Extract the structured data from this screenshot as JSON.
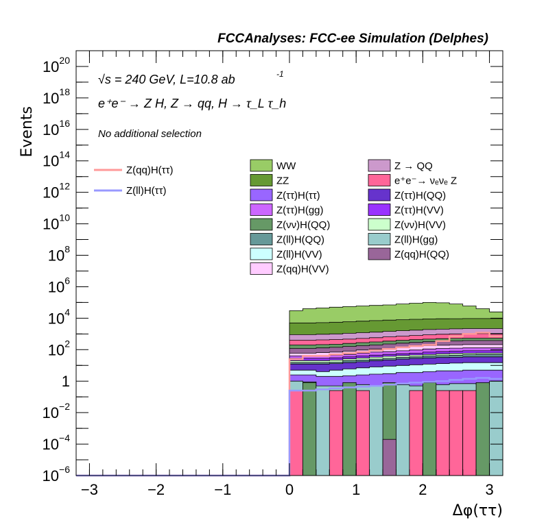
{
  "chart_data": {
    "type": "area",
    "title": "FCCAnalyses: FCC-ee Simulation (Delphes)",
    "xlabel": "Δφ(ττ)",
    "ylabel": "Events",
    "xlim": [
      -3.2,
      3.2
    ],
    "ylim": [
      1e-06,
      1e+21
    ],
    "log_y": true,
    "grid": false,
    "x_ticks": [
      "−3",
      "−2",
      "−1",
      "0",
      "1",
      "2",
      "3"
    ],
    "y_ticks": [
      {
        "base": "10",
        "exp": "−6",
        "value": 1e-06
      },
      {
        "base": "10",
        "exp": "−4",
        "value": 0.0001
      },
      {
        "base": "10",
        "exp": "−2",
        "value": 0.01
      },
      {
        "base": "1",
        "exp": "",
        "value": 1
      },
      {
        "base": "10",
        "exp": "2",
        "value": 100.0
      },
      {
        "base": "10",
        "exp": "4",
        "value": 10000.0
      },
      {
        "base": "10",
        "exp": "6",
        "value": 1000000.0
      },
      {
        "base": "10",
        "exp": "8",
        "value": 100000000.0
      },
      {
        "base": "10",
        "exp": "10",
        "value": 10000000000.0
      },
      {
        "base": "10",
        "exp": "12",
        "value": 1000000000000.0
      },
      {
        "base": "10",
        "exp": "14",
        "value": 100000000000000.0
      },
      {
        "base": "10",
        "exp": "16",
        "value": 1e+16
      },
      {
        "base": "10",
        "exp": "18",
        "value": 1e+18
      },
      {
        "base": "10",
        "exp": "20",
        "value": 1e+20
      }
    ],
    "annotations": {
      "energy": "√s = 240 GeV, L=10.8 ab",
      "energy_exp": "-1",
      "process": "e⁺e⁻ → Z H, Z → qq, H → τ_L τ_h",
      "selection": "No additional selection"
    },
    "bin_edges": [
      0,
      0.2,
      0.4,
      0.6,
      0.8,
      1.0,
      1.2,
      1.4,
      1.6,
      1.8,
      2.0,
      2.2,
      2.4,
      2.6,
      2.8,
      3.0,
      3.2
    ],
    "stack_totals": [
      {
        "name": "Z(ll)H(gg)",
        "color": "#99cccc",
        "values": [
          1.0,
          0.9,
          0.5,
          0.5,
          0.45,
          0.6,
          0.5,
          0.6,
          0.6,
          0.5,
          0.6,
          0.6,
          0.7,
          0.7,
          0.6,
          1.0
        ]
      },
      {
        "name": "Z(ττ)H(ττ)",
        "color": "#9966ff",
        "values": [
          2.5,
          2.5,
          2.0,
          2.0,
          2.2,
          2.5,
          2.8,
          3.0,
          3.5,
          3.5,
          4.0,
          4.5,
          4.5,
          5.0,
          5.0,
          5.0
        ]
      },
      {
        "name": "Z(ll)H(VV)",
        "color": "#ccffff",
        "values": [
          5,
          5,
          4,
          5,
          6,
          7,
          8,
          9,
          10,
          11,
          12,
          13,
          14,
          15,
          15,
          15
        ]
      },
      {
        "name": "Z(ττ)H(QQ)",
        "color": "#6633cc",
        "values": [
          12,
          12,
          12,
          13,
          15,
          17,
          20,
          22,
          25,
          28,
          30,
          32,
          33,
          35,
          35,
          35
        ]
      },
      {
        "name": "Z(ll)H(QQ)",
        "color": "#669999",
        "values": [
          15,
          15,
          15,
          16,
          20,
          22,
          25,
          28,
          32,
          35,
          40,
          42,
          45,
          48,
          50,
          50
        ]
      },
      {
        "name": "Z(νν)H(VV)",
        "color": "#ccffcc",
        "values": [
          20,
          20,
          20,
          22,
          26,
          30,
          34,
          38,
          42,
          46,
          50,
          55,
          58,
          60,
          62,
          62
        ]
      },
      {
        "name": "Z(ττ)H(VV)",
        "color": "#9933ff",
        "values": [
          28,
          28,
          28,
          30,
          35,
          40,
          45,
          50,
          55,
          60,
          70,
          75,
          80,
          85,
          85,
          85
        ]
      },
      {
        "name": "Z(ττ)H(gg)",
        "color": "#cc66ff",
        "values": [
          40,
          40,
          40,
          45,
          50,
          60,
          70,
          75,
          85,
          95,
          110,
          120,
          125,
          130,
          130,
          130
        ]
      },
      {
        "name": "Z(qq)H(VV)",
        "color": "#ffccff",
        "values": [
          60,
          60,
          65,
          70,
          80,
          95,
          110,
          120,
          140,
          160,
          180,
          190,
          200,
          210,
          210,
          210
        ]
      },
      {
        "name": "Z(qq)H(QQ)",
        "color": "#996699",
        "values": [
          120,
          120,
          130,
          140,
          160,
          180,
          200,
          230,
          260,
          290,
          320,
          340,
          360,
          380,
          380,
          380
        ]
      },
      {
        "name": "Z(νν)H(QQ)",
        "color": "#669966",
        "values": [
          200,
          200,
          210,
          220,
          250,
          280,
          310,
          350,
          390,
          430,
          470,
          500,
          520,
          540,
          540,
          540
        ]
      },
      {
        "name": "e⁺e⁻→ νₑνₑ Z",
        "color": "#ff6699",
        "values": [
          400,
          400,
          420,
          440,
          470,
          520,
          580,
          650,
          720,
          800,
          880,
          950,
          1000,
          1050,
          1050,
          1050
        ]
      },
      {
        "name": "Z → QQ",
        "color": "#cc99cc",
        "values": [
          900,
          900,
          950,
          1000,
          1100,
          1200,
          1300,
          1450,
          1600,
          1750,
          1900,
          2000,
          2100,
          2200,
          2200,
          2200
        ]
      },
      {
        "name": "ZZ",
        "color": "#669933",
        "values": [
          5000,
          5000,
          5200,
          5500,
          6000,
          6500,
          7000,
          7500,
          8000,
          8500,
          9000,
          9200,
          9300,
          9500,
          9500,
          9500
        ]
      },
      {
        "name": "WW",
        "color": "#99cc66",
        "values": [
          30000,
          40000,
          45000,
          50000,
          55000,
          60000,
          65000,
          70000,
          80000,
          90000,
          100000,
          95000,
          80000,
          60000,
          40000,
          25000
        ]
      }
    ],
    "bars": [
      {
        "name": "e⁺e⁻→ νₑνₑ Z",
        "color": "#ff6699",
        "bins": [
          0,
          3,
          5,
          9,
          11,
          12,
          13
        ],
        "value": 0.25
      },
      {
        "name": "Z(νν)H(QQ)",
        "color": "#669966",
        "bins": [
          1,
          4,
          7,
          10,
          14
        ],
        "value": 0.8
      },
      {
        "name": "Z(qq)H(QQ)",
        "color": "#996699",
        "bins": [
          7
        ],
        "value": 0.0002
      }
    ],
    "lines": [
      {
        "name": "Z(qq)H(ττ)",
        "color": "#ff9999",
        "x_from": -3.2,
        "values_outside": 1e-06,
        "values": [
          25,
          40,
          40,
          50,
          60,
          70,
          90,
          110,
          140,
          170,
          200,
          350,
          700,
          1000,
          1200,
          700
        ]
      },
      {
        "name": "Z(ll)H(ττ)",
        "color": "#9999ff",
        "x_from": -3.2,
        "values_outside": 1e-06,
        "values": [
          0.25,
          0.25,
          0.3,
          0.35,
          0.4,
          0.45,
          0.5,
          0.6,
          0.7,
          0.8,
          0.9,
          1.0,
          1.2,
          1.4,
          1.6,
          1.4
        ]
      }
    ],
    "legend_lines": [
      {
        "label": "Z(qq)H(ττ)",
        "color": "#ff9999"
      },
      {
        "label": "Z(ll)H(ττ)",
        "color": "#9999ff"
      }
    ],
    "legend_left": [
      {
        "label": "WW",
        "color": "#99cc66"
      },
      {
        "label": "ZZ",
        "color": "#669933"
      },
      {
        "label": "Z(ττ)H(ττ)",
        "color": "#9966ff"
      },
      {
        "label": "Z(ττ)H(gg)",
        "color": "#cc66ff"
      },
      {
        "label": "Z(νν)H(QQ)",
        "color": "#669966"
      },
      {
        "label": "Z(ll)H(QQ)",
        "color": "#669999"
      },
      {
        "label": "Z(ll)H(VV)",
        "color": "#ccffff"
      },
      {
        "label": "Z(qq)H(VV)",
        "color": "#ffccff"
      }
    ],
    "legend_right": [
      {
        "label": "Z → QQ",
        "color": "#cc99cc"
      },
      {
        "label": "e⁺e⁻→ νₑνₑ Z",
        "color": "#ff6699"
      },
      {
        "label": "Z(ττ)H(QQ)",
        "color": "#6633cc"
      },
      {
        "label": "Z(ττ)H(VV)",
        "color": "#9933ff"
      },
      {
        "label": "Z(νν)H(VV)",
        "color": "#ccffcc"
      },
      {
        "label": "Z(ll)H(gg)",
        "color": "#99cccc"
      },
      {
        "label": "Z(qq)H(QQ)",
        "color": "#996699"
      }
    ]
  }
}
